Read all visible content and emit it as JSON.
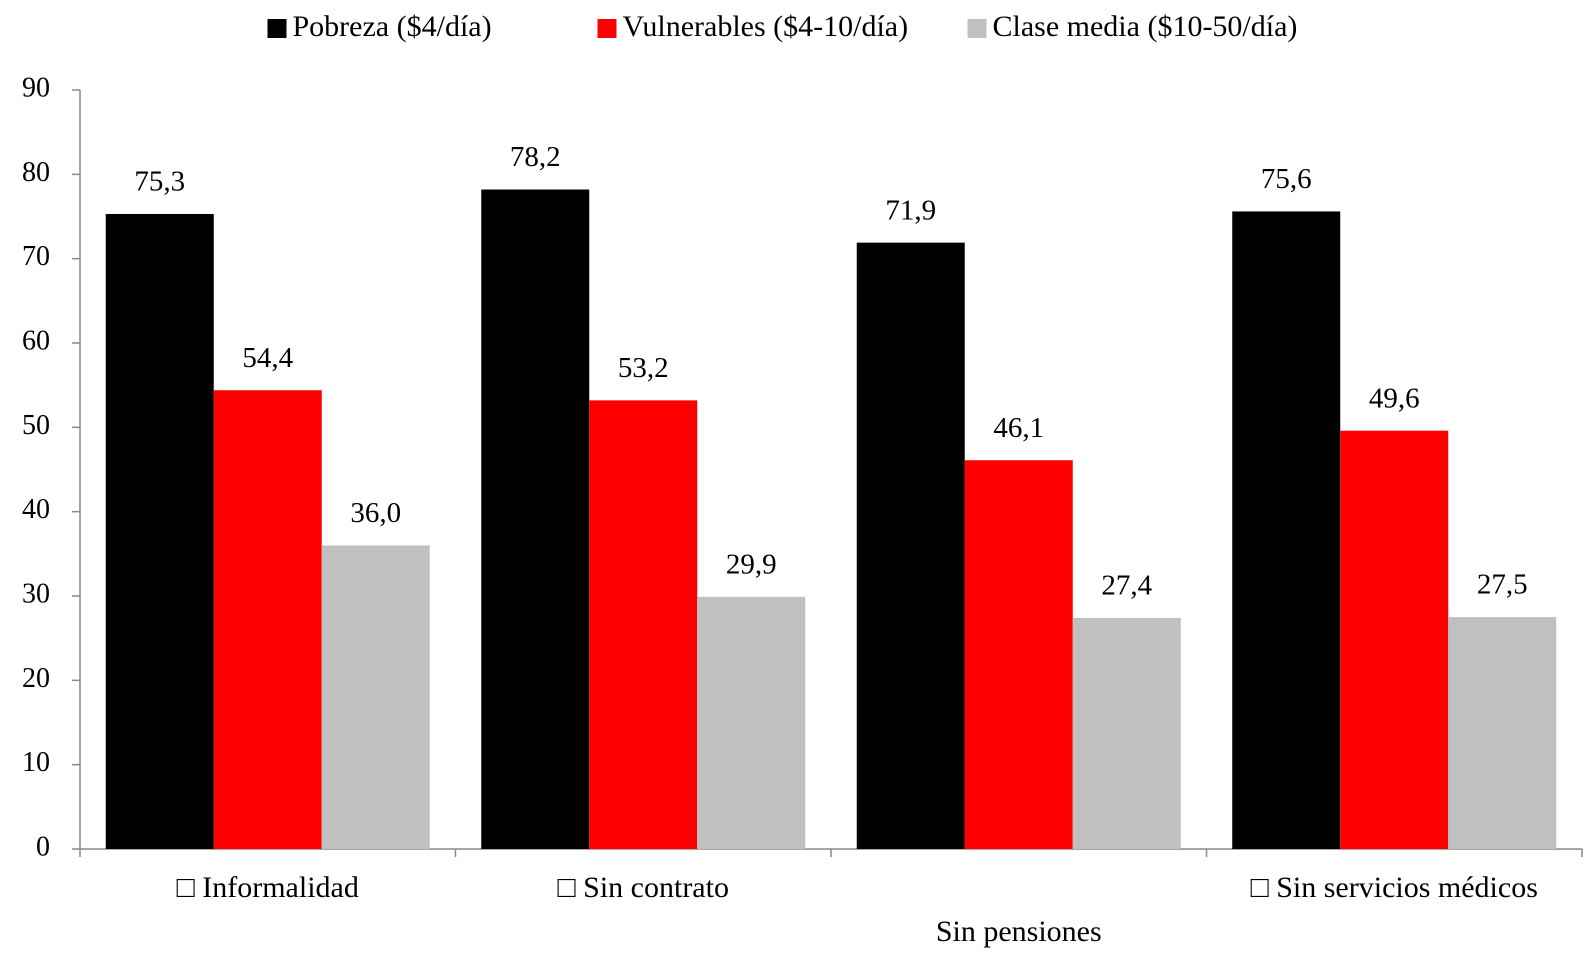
{
  "chart_data": {
    "type": "bar",
    "categories": [
      "□ Informalidad",
      "□ Sin contrato",
      "Sin pensiones",
      "□ Sin servicios médicos"
    ],
    "series": [
      {
        "name": "Pobreza ($4/día)",
        "color": "#000000",
        "values": [
          75.3,
          78.2,
          71.9,
          75.6
        ],
        "value_labels": [
          "75,3",
          "78,2",
          "71,9",
          "75,6"
        ]
      },
      {
        "name": "Vulnerables ($4-10/día)",
        "color": "#ff0000",
        "values": [
          54.4,
          53.2,
          46.1,
          49.6
        ],
        "value_labels": [
          "54,4",
          "53,2",
          "46,1",
          "49,6"
        ]
      },
      {
        "name": "Clase media ($10-50/día)",
        "color": "#c0c0c0",
        "values": [
          36.0,
          29.9,
          27.4,
          27.5
        ],
        "value_labels": [
          "36,0",
          "29,9",
          "27,4",
          "27,5"
        ]
      }
    ],
    "ylim": [
      0,
      90
    ],
    "yticks": [
      0,
      10,
      20,
      30,
      40,
      50,
      60,
      70,
      80,
      90
    ],
    "legend": "top"
  }
}
